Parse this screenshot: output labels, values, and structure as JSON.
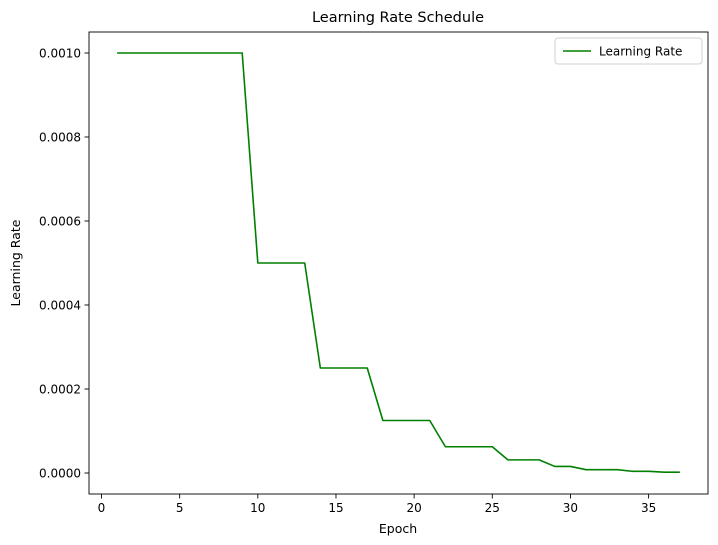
{
  "chart_data": {
    "type": "line",
    "title": "Learning Rate Schedule",
    "xlabel": "Epoch",
    "ylabel": "Learning Rate",
    "xlim": [
      -0.8,
      38.8
    ],
    "ylim": [
      -5e-05,
      0.00105
    ],
    "xticks": [
      0,
      5,
      10,
      15,
      20,
      25,
      30,
      35
    ],
    "yticks": [
      0.0,
      0.0002,
      0.0004,
      0.0006,
      0.0008,
      0.001
    ],
    "ytick_labels": [
      "0.0000",
      "0.0002",
      "0.0004",
      "0.0006",
      "0.0008",
      "0.0010"
    ],
    "grid": false,
    "legend": {
      "position": "upper right"
    },
    "series": [
      {
        "name": "Learning Rate",
        "color": "#008000",
        "x": [
          1,
          2,
          3,
          4,
          5,
          6,
          7,
          8,
          9,
          10,
          11,
          12,
          13,
          14,
          15,
          16,
          17,
          18,
          19,
          20,
          21,
          22,
          23,
          24,
          25,
          26,
          27,
          28,
          29,
          30,
          31,
          32,
          33,
          34,
          35,
          36,
          37
        ],
        "values": [
          0.001,
          0.001,
          0.001,
          0.001,
          0.001,
          0.001,
          0.001,
          0.001,
          0.001,
          0.0005,
          0.0005,
          0.0005,
          0.0005,
          0.00025,
          0.00025,
          0.00025,
          0.00025,
          0.000125,
          0.000125,
          0.000125,
          0.000125,
          6.25e-05,
          6.25e-05,
          6.25e-05,
          6.25e-05,
          3.125e-05,
          3.125e-05,
          3.125e-05,
          1.5625e-05,
          1.5625e-05,
          7.8125e-06,
          7.8125e-06,
          7.8125e-06,
          3.90625e-06,
          3.90625e-06,
          1.953125e-06,
          1.953125e-06
        ]
      }
    ]
  }
}
